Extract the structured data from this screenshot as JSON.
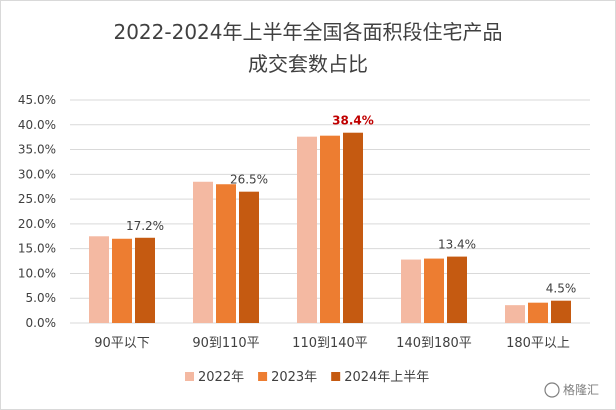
{
  "chart_data": {
    "type": "bar",
    "title": [
      "2022-2024年上半年全国各面积段住宅产品",
      "成交套数占比"
    ],
    "categories": [
      "90平以下",
      "90到110平",
      "110到140平",
      "140到180平",
      "180平以上"
    ],
    "series": [
      {
        "name": "2022年",
        "color": "#f4b9a2",
        "values": [
          17.5,
          28.5,
          37.6,
          12.8,
          3.6
        ]
      },
      {
        "name": "2023年",
        "color": "#ed7d31",
        "values": [
          17.0,
          28.0,
          37.8,
          13.0,
          4.1
        ]
      },
      {
        "name": "2024年上半年",
        "color": "#c55a11",
        "values": [
          17.2,
          26.5,
          38.4,
          13.4,
          4.5
        ]
      }
    ],
    "data_labels": [
      {
        "series": 2,
        "category": 0,
        "text": "17.2%",
        "highlight": false
      },
      {
        "series": 2,
        "category": 1,
        "text": "26.5%",
        "highlight": false
      },
      {
        "series": 2,
        "category": 2,
        "text": "38.4%",
        "highlight": true
      },
      {
        "series": 2,
        "category": 3,
        "text": "13.4%",
        "highlight": false
      },
      {
        "series": 2,
        "category": 4,
        "text": "4.5%",
        "highlight": false
      }
    ],
    "highlight_color": "#c00000",
    "yticks": [
      "0.0%",
      "5.0%",
      "10.0%",
      "15.0%",
      "20.0%",
      "25.0%",
      "30.0%",
      "35.0%",
      "40.0%",
      "45.0%"
    ],
    "ylim": [
      0,
      45
    ],
    "grid": true,
    "legend_position": "bottom"
  },
  "watermark": "格隆汇"
}
